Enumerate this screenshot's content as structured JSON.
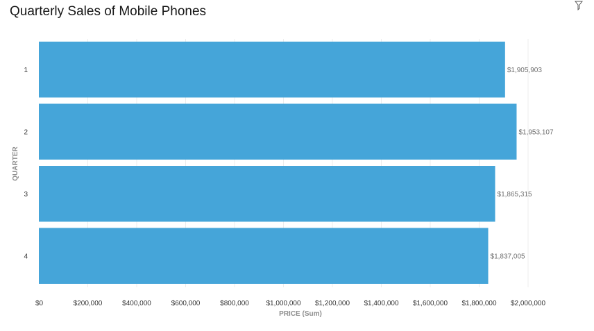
{
  "colors": {
    "bar": "#45a5d9",
    "grid": "#ececec",
    "title": "#161616"
  },
  "icons": {
    "toolbar": "filter-icon"
  },
  "chart_data": {
    "type": "bar",
    "orientation": "horizontal",
    "title": "Quarterly Sales of Mobile Phones",
    "xlabel": "PRICE (Sum)",
    "ylabel": "QUARTER",
    "categories": [
      "1",
      "2",
      "3",
      "4"
    ],
    "values": [
      1905903,
      1953107,
      1865315,
      1837005
    ],
    "value_labels": [
      "$1,905,903",
      "$1,953,107",
      "$1,865,315",
      "$1,837,005"
    ],
    "xlim": [
      0,
      2000000
    ],
    "xticks": [
      0,
      200000,
      400000,
      600000,
      800000,
      1000000,
      1200000,
      1400000,
      1600000,
      1800000,
      2000000
    ],
    "xtick_labels": [
      "$0",
      "$200,000",
      "$400,000",
      "$600,000",
      "$800,000",
      "$1,000,000",
      "$1,200,000",
      "$1,400,000",
      "$1,600,000",
      "$1,800,000",
      "$2,000,000"
    ],
    "grid": "vertical gridlines"
  }
}
